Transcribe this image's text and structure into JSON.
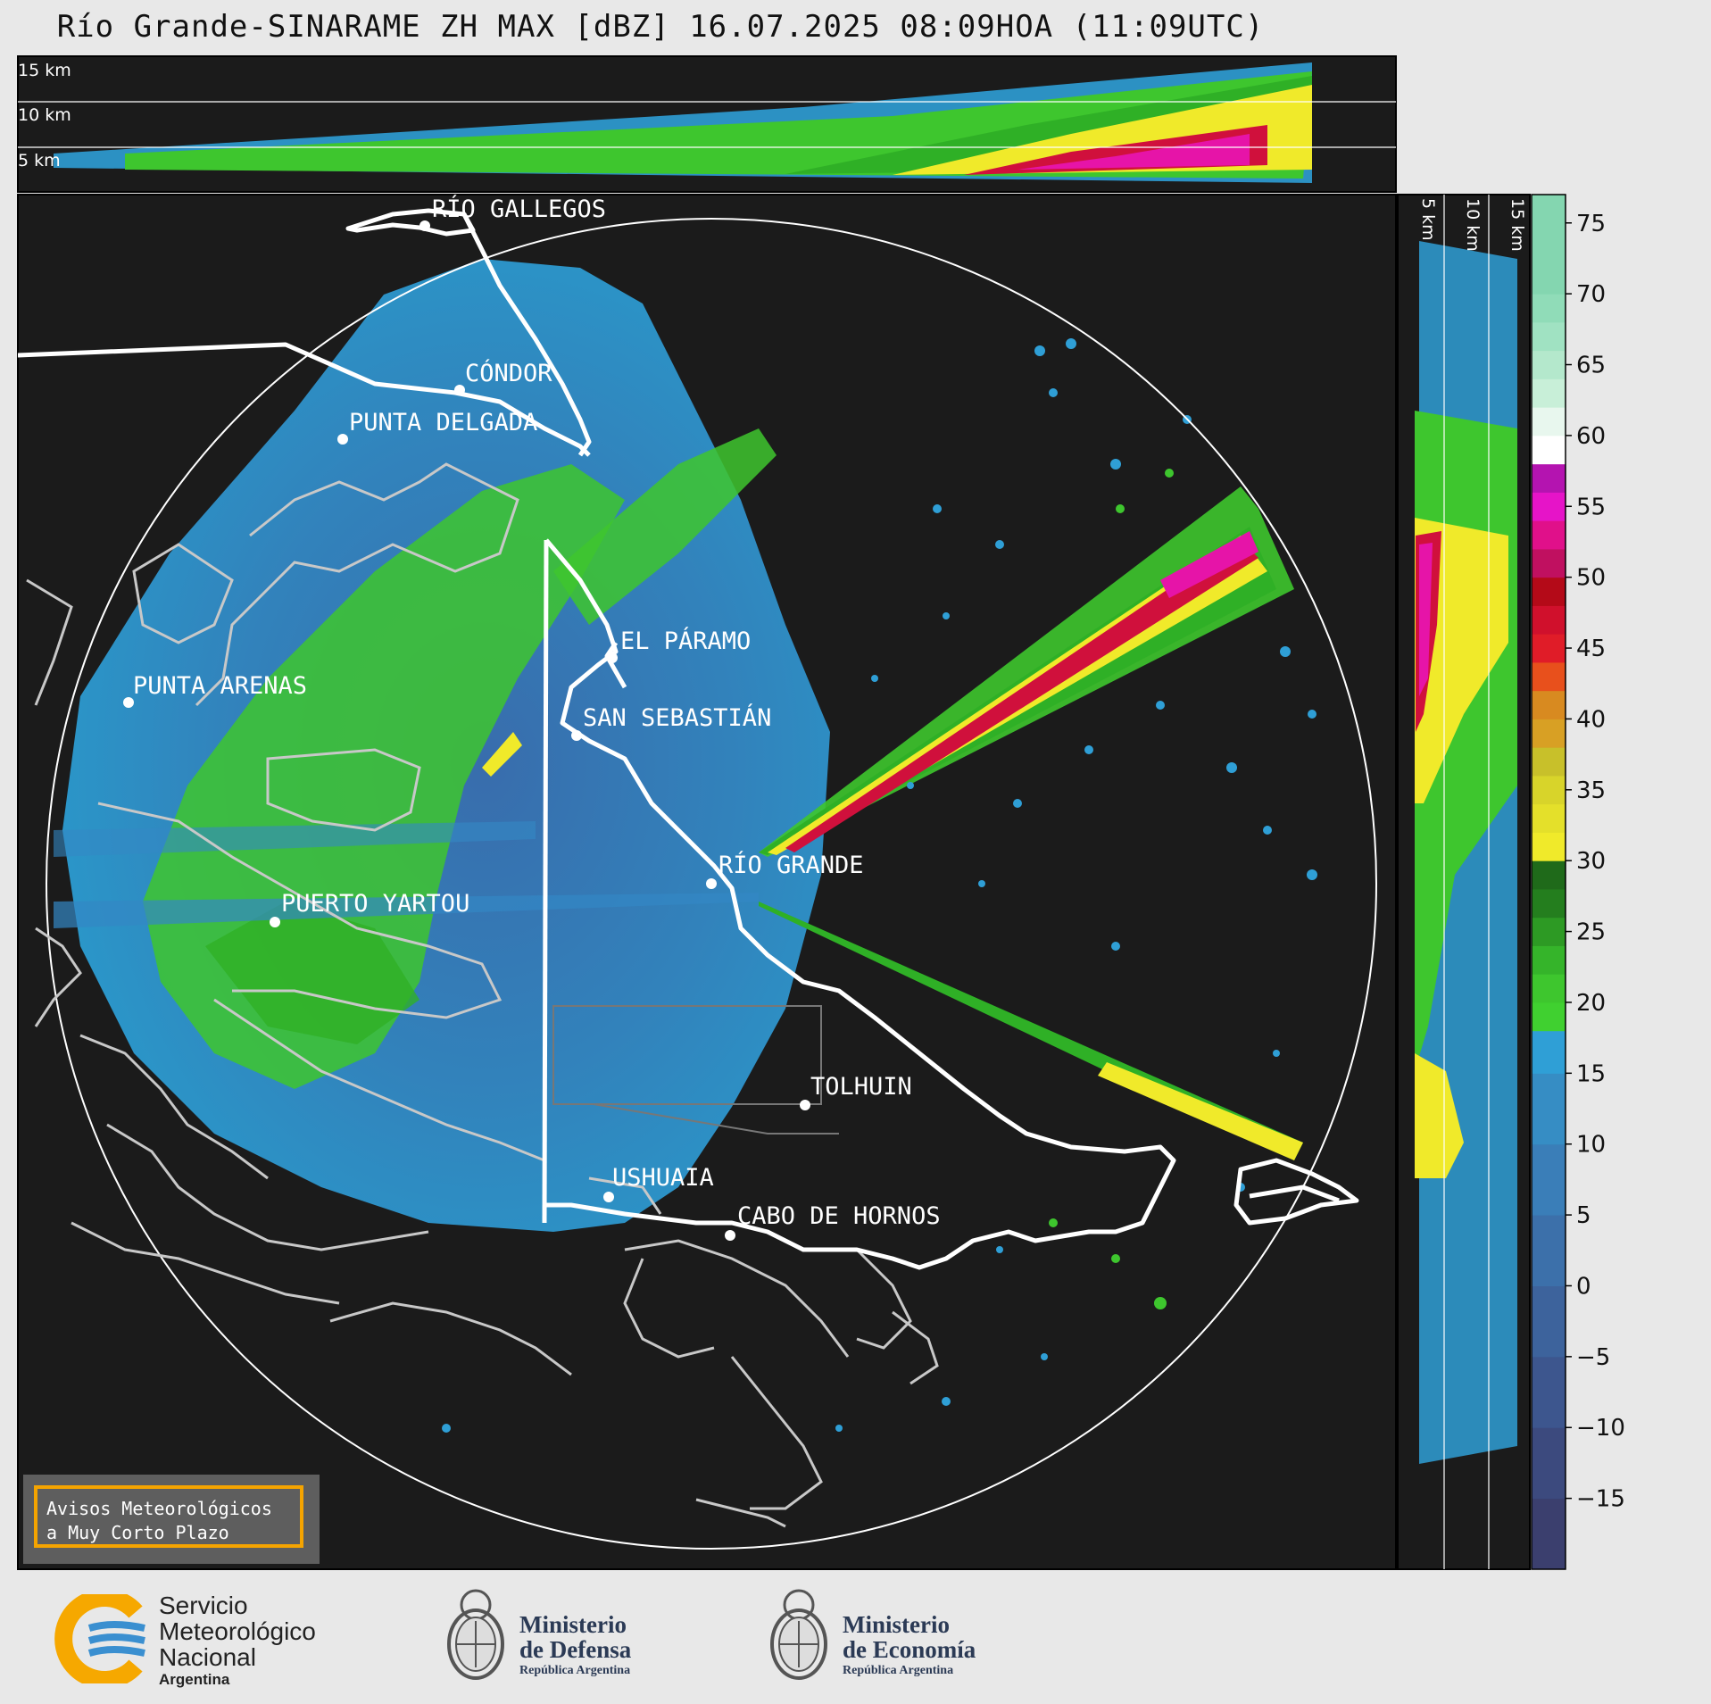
{
  "title": "Río Grande-SINARAME ZH MAX [dBZ] 16.07.2025 08:09HOA (11:09UTC)",
  "top_panel": {
    "height_labels": [
      "15 km",
      "10 km",
      "5 km"
    ]
  },
  "right_panel": {
    "height_labels": [
      "5 km",
      "10 km",
      "15 km"
    ]
  },
  "colorbar": {
    "unit": "dBZ",
    "ticks": [
      "75",
      "70",
      "65",
      "60",
      "55",
      "50",
      "45",
      "40",
      "35",
      "30",
      "25",
      "20",
      "15",
      "10",
      "5",
      "0",
      "−5",
      "−10",
      "−15"
    ],
    "range": [
      -20,
      77
    ]
  },
  "places": [
    {
      "name": "RÍO GALLEGOS"
    },
    {
      "name": "CÓNDOR"
    },
    {
      "name": "PUNTA DELGADA"
    },
    {
      "name": "PUNTA ARENAS"
    },
    {
      "name": "EL PÁRAMO"
    },
    {
      "name": "SAN SEBASTIÁN"
    },
    {
      "name": "RÍO GRANDE"
    },
    {
      "name": "PUERTO YARTOU"
    },
    {
      "name": "TOLHUIN"
    },
    {
      "name": "USHUAIA"
    },
    {
      "name": "CABO DE HORNOS"
    }
  ],
  "badge": {
    "line1": "Avisos Meteorológicos",
    "line2": "a Muy Corto Plazo"
  },
  "footer": {
    "smn": {
      "line1": "Servicio",
      "line2": "Meteorológico",
      "line3": "Nacional",
      "line4": "Argentina"
    },
    "defensa": {
      "line1": "Ministerio",
      "line2": "de Defensa",
      "line3": "República Argentina"
    },
    "economia": {
      "line1": "Ministerio",
      "line2": "de Economía",
      "line3": "República Argentina"
    }
  },
  "colors": {
    "background": "#1b1b1b",
    "weak_echo": "#2f9fd6",
    "moderate_echo": "#3ec62e",
    "strong_echo": "#f0ea2a",
    "very_strong_echo": "#e0105a",
    "coastline": "#ffffff",
    "smn_orange": "#f6a800",
    "smn_blue": "#3a8fd0"
  }
}
